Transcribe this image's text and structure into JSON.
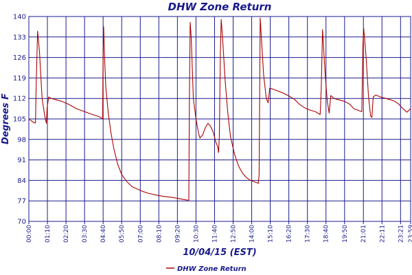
{
  "chart_data": {
    "type": "line",
    "title": "DHW Zone Return",
    "xlabel": "10/04/15 (EST)",
    "ylabel": "Degrees F",
    "ylim": [
      70,
      140
    ],
    "y_ticks": [
      "70",
      "77",
      "84",
      "91",
      "98",
      "105",
      "112",
      "119",
      "126",
      "133",
      "140"
    ],
    "x_ticks": [
      "00:00",
      "01:10",
      "02:20",
      "03:30",
      "04:40",
      "05:50",
      "07:00",
      "08:10",
      "09:20",
      "10:30",
      "11:40",
      "12:50",
      "14:00",
      "15:10",
      "16:20",
      "17:30",
      "18:40",
      "19:50",
      "21:01",
      "22:11",
      "23:21",
      "23:59"
    ],
    "grid": true,
    "legend_position": "bottom-center",
    "colors": {
      "series": "#aa0000",
      "grid": "#1a1a8c",
      "text": "#1a1a8c"
    },
    "series": [
      {
        "name": "DHW Zone Return",
        "points": [
          [
            "00:00",
            105.0
          ],
          [
            "00:10",
            104.3
          ],
          [
            "00:18",
            103.8
          ],
          [
            "00:25",
            103.6
          ],
          [
            "00:28",
            118.0
          ],
          [
            "00:33",
            135.0
          ],
          [
            "00:40",
            128.0
          ],
          [
            "00:50",
            112.0
          ],
          [
            "01:00",
            106.0
          ],
          [
            "01:06",
            103.5
          ],
          [
            "01:09",
            109.0
          ],
          [
            "01:15",
            112.5
          ],
          [
            "01:25",
            112.0
          ],
          [
            "01:45",
            111.5
          ],
          [
            "02:05",
            111.0
          ],
          [
            "02:30",
            110.0
          ],
          [
            "03:00",
            108.5
          ],
          [
            "03:30",
            107.5
          ],
          [
            "04:00",
            106.5
          ],
          [
            "04:25",
            105.8
          ],
          [
            "04:38",
            105.0
          ],
          [
            "04:40",
            128.0
          ],
          [
            "04:42",
            136.5
          ],
          [
            "04:45",
            127.0
          ],
          [
            "04:50",
            116.0
          ],
          [
            "05:00",
            106.5
          ],
          [
            "05:10",
            100.0
          ],
          [
            "05:20",
            95.0
          ],
          [
            "05:35",
            89.5
          ],
          [
            "05:50",
            86.0
          ],
          [
            "06:10",
            83.5
          ],
          [
            "06:30",
            81.8
          ],
          [
            "06:50",
            81.0
          ],
          [
            "07:10",
            80.2
          ],
          [
            "07:30",
            79.6
          ],
          [
            "08:00",
            79.0
          ],
          [
            "08:30",
            78.5
          ],
          [
            "09:00",
            78.2
          ],
          [
            "09:30",
            77.7
          ],
          [
            "09:55",
            77.3
          ],
          [
            "10:03",
            77.2
          ],
          [
            "10:05",
            110.0
          ],
          [
            "10:08",
            138.0
          ],
          [
            "10:12",
            133.0
          ],
          [
            "10:20",
            112.0
          ],
          [
            "10:30",
            105.0
          ],
          [
            "10:40",
            100.0
          ],
          [
            "10:45",
            98.5
          ],
          [
            "10:55",
            99.5
          ],
          [
            "11:05",
            102.0
          ],
          [
            "11:15",
            103.5
          ],
          [
            "11:25",
            102.5
          ],
          [
            "11:35",
            100.5
          ],
          [
            "11:45",
            97.0
          ],
          [
            "11:52",
            95.5
          ],
          [
            "11:55",
            93.5
          ],
          [
            "11:58",
            99.0
          ],
          [
            "12:02",
            128.0
          ],
          [
            "12:05",
            139.0
          ],
          [
            "12:10",
            133.0
          ],
          [
            "12:20",
            118.0
          ],
          [
            "12:30",
            107.0
          ],
          [
            "12:40",
            99.0
          ],
          [
            "12:55",
            93.0
          ],
          [
            "13:10",
            89.0
          ],
          [
            "13:25",
            86.5
          ],
          [
            "13:40",
            85.0
          ],
          [
            "13:55",
            84.0
          ],
          [
            "14:10",
            83.5
          ],
          [
            "14:25",
            83.0
          ],
          [
            "14:28",
            86.0
          ],
          [
            "14:32",
            139.5
          ],
          [
            "14:37",
            132.0
          ],
          [
            "14:45",
            120.0
          ],
          [
            "14:55",
            112.0
          ],
          [
            "15:02",
            110.5
          ],
          [
            "15:08",
            115.5
          ],
          [
            "15:20",
            115.2
          ],
          [
            "15:40",
            114.5
          ],
          [
            "16:00",
            113.8
          ],
          [
            "16:20",
            112.8
          ],
          [
            "16:40",
            111.8
          ],
          [
            "17:00",
            110.0
          ],
          [
            "17:20",
            108.8
          ],
          [
            "17:40",
            108.0
          ],
          [
            "18:00",
            107.5
          ],
          [
            "18:18",
            106.5
          ],
          [
            "18:22",
            115.0
          ],
          [
            "18:27",
            135.5
          ],
          [
            "18:30",
            131.0
          ],
          [
            "18:37",
            120.0
          ],
          [
            "18:45",
            111.0
          ],
          [
            "18:52",
            107.0
          ],
          [
            "18:58",
            113.0
          ],
          [
            "19:10",
            112.0
          ],
          [
            "19:30",
            111.5
          ],
          [
            "19:50",
            111.0
          ],
          [
            "20:10",
            110.0
          ],
          [
            "20:25",
            108.5
          ],
          [
            "20:40",
            108.0
          ],
          [
            "20:55",
            107.5
          ],
          [
            "20:59",
            130.0
          ],
          [
            "21:02",
            136.0
          ],
          [
            "21:06",
            132.0
          ],
          [
            "21:12",
            125.0
          ],
          [
            "21:20",
            113.0
          ],
          [
            "21:28",
            106.0
          ],
          [
            "21:33",
            105.5
          ],
          [
            "21:38",
            112.5
          ],
          [
            "21:48",
            113.2
          ],
          [
            "22:05",
            112.5
          ],
          [
            "22:25",
            112.0
          ],
          [
            "22:45",
            111.5
          ],
          [
            "23:00",
            111.0
          ],
          [
            "23:15",
            110.0
          ],
          [
            "23:30",
            108.5
          ],
          [
            "23:45",
            107.3
          ],
          [
            "23:59",
            108.5
          ]
        ]
      }
    ]
  }
}
